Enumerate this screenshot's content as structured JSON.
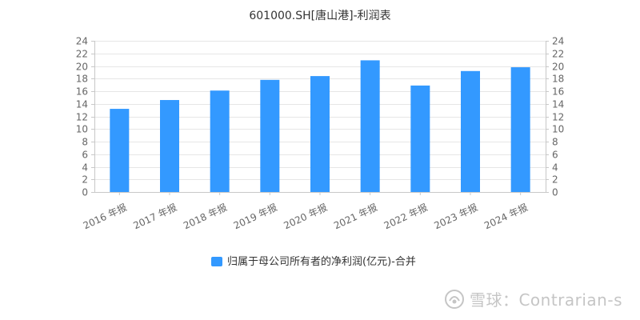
{
  "chart_data": {
    "type": "bar",
    "title": "601000.SH[唐山港]-利润表",
    "categories": [
      "2016 年报",
      "2017 年报",
      "2018 年报",
      "2019 年报",
      "2020 年报",
      "2021 年报",
      "2022 年报",
      "2023 年报",
      "2024 年报"
    ],
    "series": [
      {
        "name": "归属于母公司所有者的净利润(亿元)-合并",
        "values": [
          13.2,
          14.6,
          16.1,
          17.8,
          18.4,
          20.9,
          16.9,
          19.2,
          19.8
        ]
      }
    ],
    "ylim": [
      0,
      24
    ],
    "yticks": [
      0,
      2,
      4,
      6,
      8,
      10,
      12,
      14,
      16,
      18,
      20,
      22,
      24
    ],
    "grid": true,
    "legend_position": "bottom",
    "colors": {
      "bar": "#3399ff",
      "axis": "#c8c8c8",
      "grid": "#e6e6e6"
    }
  },
  "watermark": {
    "text": "雪球：Contrarian-s",
    "icon": "xueqiu-snowball-icon"
  }
}
